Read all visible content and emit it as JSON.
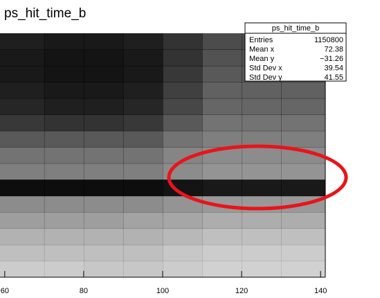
{
  "chart_data": {
    "type": "hist2d",
    "title": "ps_hit_time_b",
    "xlim": [
      58.8,
      141.2
    ],
    "xticks": [
      60,
      80,
      100,
      120,
      140
    ],
    "ylim": [
      -110,
      40
    ],
    "xbins": [
      58.8,
      70,
      80,
      90,
      100,
      110,
      120,
      130,
      141.2
    ],
    "ybins": [
      -110,
      -100,
      -90,
      -80,
      -70,
      -60,
      -50,
      -40,
      -30,
      -20,
      -10,
      0,
      10,
      20,
      30,
      40
    ],
    "zmax": 100,
    "color": "#000000",
    "values": [
      [
        20,
        20,
        22,
        22,
        20,
        18,
        18,
        18
      ],
      [
        25,
        25,
        25,
        25,
        22,
        20,
        20,
        20
      ],
      [
        30,
        30,
        30,
        30,
        28,
        25,
        25,
        25
      ],
      [
        38,
        38,
        38,
        36,
        35,
        32,
        32,
        32
      ],
      [
        45,
        45,
        45,
        45,
        42,
        40,
        40,
        40
      ],
      [
        95,
        95,
        95,
        95,
        92,
        90,
        90,
        90
      ],
      [
        50,
        50,
        50,
        50,
        45,
        42,
        42,
        42
      ],
      [
        55,
        55,
        55,
        55,
        48,
        45,
        45,
        45
      ],
      [
        65,
        65,
        65,
        65,
        55,
        50,
        50,
        50
      ],
      [
        78,
        80,
        80,
        78,
        65,
        55,
        55,
        55
      ],
      [
        85,
        88,
        88,
        85,
        72,
        60,
        60,
        60
      ],
      [
        88,
        90,
        90,
        88,
        75,
        62,
        62,
        62
      ],
      [
        90,
        92,
        92,
        90,
        78,
        65,
        65,
        65
      ],
      [
        90,
        92,
        92,
        90,
        80,
        68,
        68,
        68
      ],
      [
        88,
        90,
        90,
        88,
        80,
        70,
        70,
        70
      ]
    ],
    "stats": {
      "title": "ps_hit_time_b",
      "rows": [
        {
          "name": "Entries",
          "value": 1150800
        },
        {
          "name": "Mean x",
          "value": 72.38
        },
        {
          "name": "Mean y",
          "value": -31.26,
          "label": "−31.26"
        },
        {
          "name": "Std Dev x",
          "value": 39.54
        },
        {
          "name": "Std Dev y",
          "value": 41.55
        }
      ]
    }
  }
}
